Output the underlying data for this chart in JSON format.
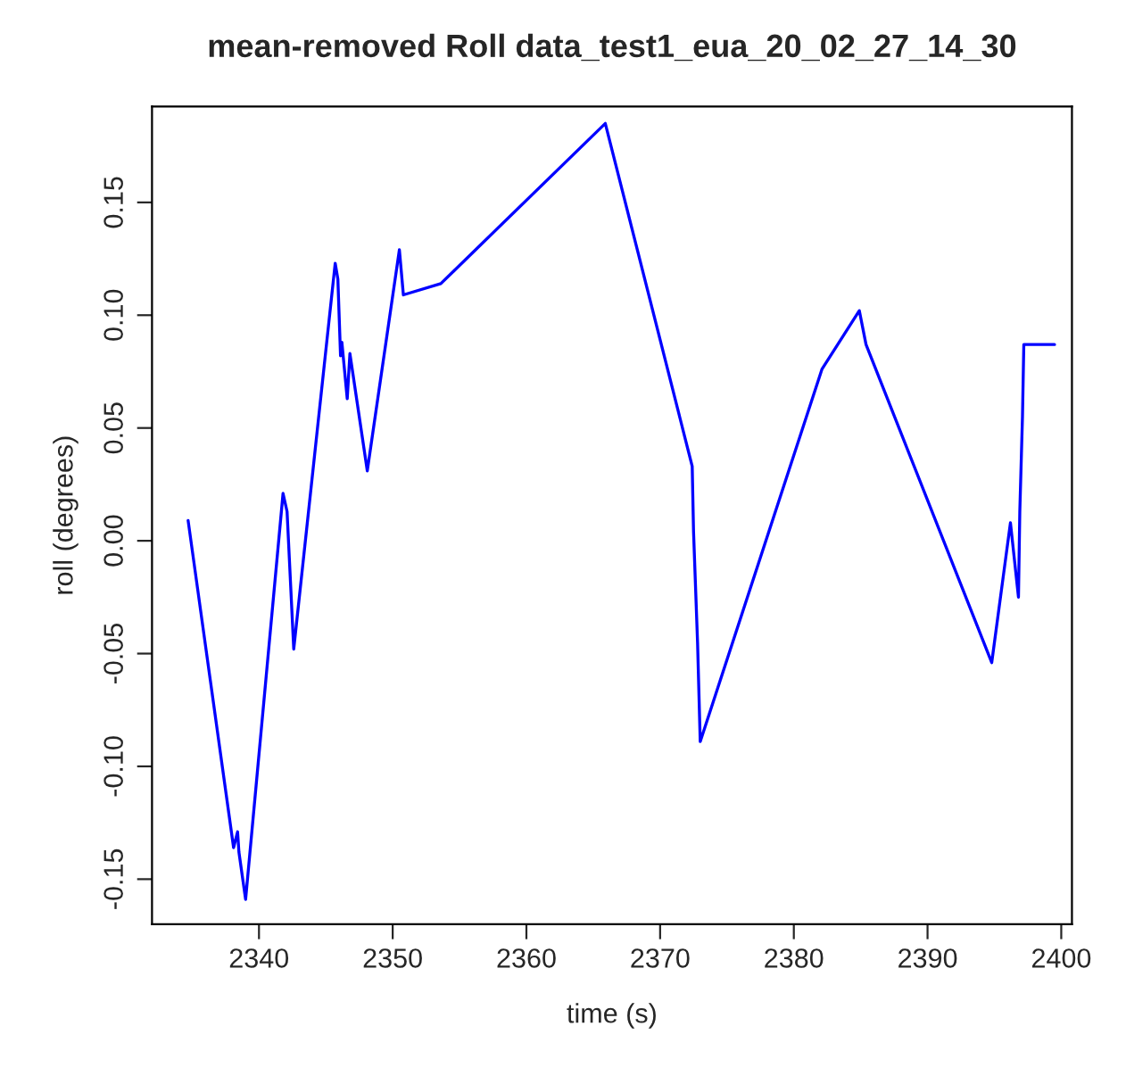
{
  "chart_data": {
    "type": "line",
    "title": "mean-removed Roll data_test1_eua_20_02_27_14_30",
    "xlabel": "time (s)",
    "ylabel": "roll (degrees)",
    "x": [
      2334.7,
      2338.1,
      2338.4,
      2338.5,
      2339.0,
      2341.8,
      2342.1,
      2342.6,
      2345.7,
      2345.9,
      2346.1,
      2346.2,
      2346.6,
      2346.8,
      2348.1,
      2350.5,
      2350.8,
      2353.6,
      2365.9,
      2372.4,
      2372.5,
      2372.8,
      2373.0,
      2382.1,
      2384.9,
      2385.4,
      2394.8,
      2396.2,
      2396.8,
      2396.9,
      2397.1,
      2397.2,
      2399.5
    ],
    "series": [
      {
        "color": "#0000ff",
        "values": [
          0.009,
          -0.136,
          -0.129,
          -0.138,
          -0.159,
          0.021,
          0.013,
          -0.048,
          0.123,
          0.116,
          0.082,
          0.088,
          0.063,
          0.083,
          0.031,
          0.129,
          0.109,
          0.114,
          0.185,
          0.033,
          0.004,
          -0.045,
          -0.089,
          0.076,
          0.102,
          0.087,
          -0.054,
          0.008,
          -0.025,
          0.013,
          0.055,
          0.087,
          0.087
        ]
      }
    ],
    "xlim": [
      2332.0,
      2400.8
    ],
    "ylim": [
      -0.17,
      0.1925
    ],
    "xticks": [
      2340,
      2350,
      2360,
      2370,
      2380,
      2390,
      2400
    ],
    "yticks": [
      {
        "value": -0.15,
        "label": "-0.15"
      },
      {
        "value": -0.1,
        "label": "-0.10"
      },
      {
        "value": -0.05,
        "label": "-0.05"
      },
      {
        "value": 0,
        "label": "0.00"
      },
      {
        "value": 0.05,
        "label": "0.05"
      },
      {
        "value": 0.1,
        "label": "0.10"
      },
      {
        "value": 0.15,
        "label": "0.15"
      }
    ],
    "grid": false,
    "legend": false,
    "line_style": "solid",
    "marker": "none"
  }
}
